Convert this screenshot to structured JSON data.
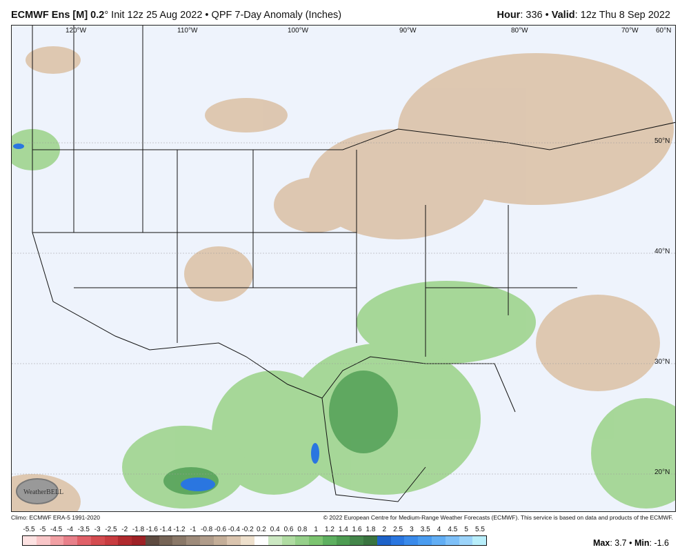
{
  "header": {
    "model": "ECMWF Ens [M] 0.2",
    "deg": "°",
    "init": " Init 12z 25 Aug 2022 • QPF 7-Day Anomaly (Inches)",
    "hour_label": "Hour",
    "hour": ": 336 • ",
    "valid_label": "Valid",
    "valid": ": 12z Thu 8 Sep 2022"
  },
  "map": {
    "lon_labels": [
      "120°W",
      "110°W",
      "100°W",
      "90°W",
      "80°W",
      "70°W",
      "60°N"
    ],
    "lat_labels": [
      "50°N",
      "40°N",
      "30°N",
      "20°N"
    ],
    "logo": "WeatherBELL",
    "colors": {
      "background": "#eef3fc",
      "dry": "#d9bfa5",
      "wet": "#7cc470",
      "very_wet": "#2a76e0"
    }
  },
  "footer": {
    "climo": "Climo: ECMWF ERA-5 1991-2020",
    "copyright": "© 2022 European Centre for Medium-Range Weather Forecasts (ECMWF). This service is based on data and products of the ECMWF."
  },
  "colorbar": {
    "labels": [
      "-5.5",
      "-5",
      "-4.5",
      "-4",
      "-3.5",
      "-3",
      "-2.5",
      "-2",
      "-1.8",
      "-1.6",
      "-1.4",
      "-1.2",
      "-1",
      "-0.8",
      "-0.6",
      "-0.4",
      "-0.2",
      "0.2",
      "0.4",
      "0.6",
      "0.8",
      "1",
      "1.2",
      "1.4",
      "1.6",
      "1.8",
      "2",
      "2.5",
      "3",
      "3.5",
      "4",
      "4.5",
      "5",
      "5.5"
    ],
    "colors": [
      "#fde2e2",
      "#f9c6c8",
      "#f2a0a4",
      "#e8808a",
      "#e06068",
      "#d44c50",
      "#c83c40",
      "#b02a2e",
      "#9e2226",
      "#5e4b40",
      "#766456",
      "#8a7868",
      "#9e8b7a",
      "#b09c8a",
      "#c4ae98",
      "#dac4ae",
      "#eee0cc",
      "#ffffff",
      "#cce8c2",
      "#b0dca2",
      "#96d08a",
      "#7cc470",
      "#5eb060",
      "#4e9c52",
      "#44864a",
      "#3a7440",
      "#1e62c8",
      "#2a76e0",
      "#3a8aea",
      "#4a9cf0",
      "#62aef4",
      "#7ec0f8",
      "#9cd4fa",
      "#b8eefa"
    ]
  },
  "stats": {
    "max_label": "Max",
    "max": ": 3.7 • ",
    "min_label": "Min",
    "min": ": -1.6"
  }
}
